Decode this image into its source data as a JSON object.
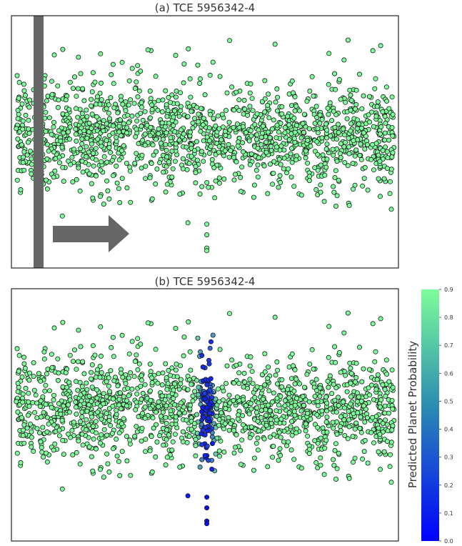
{
  "chart_data": [
    {
      "type": "scatter",
      "title": "(a) TCE 5956342-4",
      "xlabel": "",
      "ylabel": "",
      "grid": false,
      "point_color": "#7dfd9a",
      "description_elements": [
        "gray vertical sliding-window bar near left edge",
        "gray arrow pointing right"
      ],
      "overlay_color": "#666666",
      "transit_points": [
        {
          "x": 0.455,
          "y": -3.3
        },
        {
          "x": 0.505,
          "y": -3.35
        },
        {
          "x": 0.505,
          "y": -3.75
        },
        {
          "x": 0.505,
          "y": -4.25
        },
        {
          "x": 0.505,
          "y": -4.35
        }
      ],
      "noise_points_count": 1500,
      "x_range": [
        0,
        1
      ],
      "y_range": [
        -5,
        4.5
      ]
    },
    {
      "type": "scatter",
      "title": "(b) TCE 5956342-4",
      "xlabel": "",
      "ylabel": "",
      "grid": false,
      "color_by": "predicted planet probability",
      "colormap": [
        "#0000ff",
        "#7dfd9a"
      ],
      "transit_points": [
        {
          "x": 0.455,
          "y": -3.3,
          "p": 0.1
        },
        {
          "x": 0.505,
          "y": -3.35,
          "p": 0.05
        },
        {
          "x": 0.505,
          "y": -3.75,
          "p": 0.05
        },
        {
          "x": 0.505,
          "y": -4.25,
          "p": 0.05
        },
        {
          "x": 0.505,
          "y": -4.35,
          "p": 0.05
        }
      ],
      "noise_points_count": 1500,
      "x_range": [
        0,
        1
      ],
      "y_range": [
        -5,
        4.5
      ]
    }
  ],
  "colorbar": {
    "label": "Predicted Planet Probability",
    "ticks": [
      "0.0",
      "0.1",
      "0.2",
      "0.3",
      "0.4",
      "0.5",
      "0.6",
      "0.7",
      "0.8",
      "0.9"
    ],
    "min": 0.0,
    "max": 0.9,
    "color_low": "#0000ff",
    "color_high": "#7dfd9a"
  }
}
